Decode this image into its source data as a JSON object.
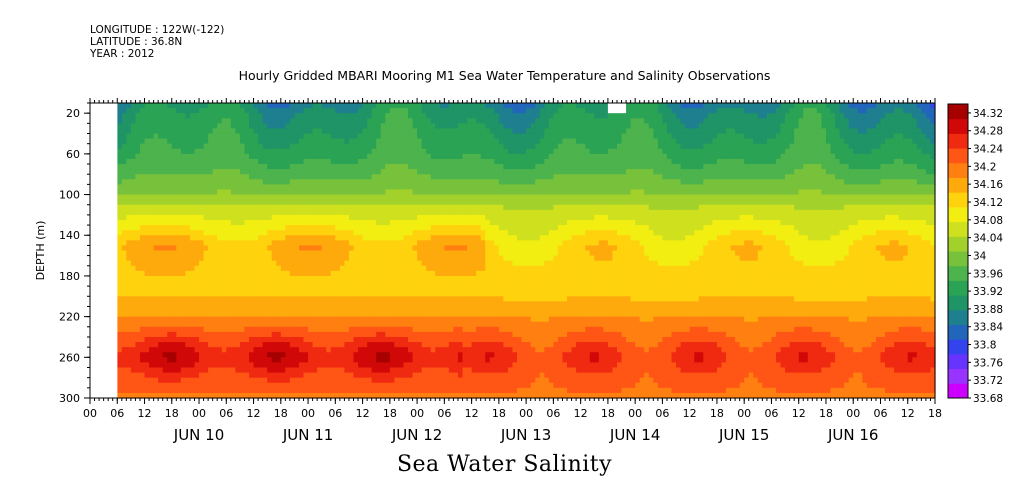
{
  "header": {
    "longitude": "LONGITUDE : 122W(-122)",
    "latitude": "LATITUDE : 36.8N",
    "year": "YEAR : 2012"
  },
  "title": "Hourly Gridded MBARI Mooring M1 Sea Water Temperature and Salinity Observations",
  "bottom_title": "Sea Water Salinity",
  "chart_data": {
    "type": "heatmap",
    "title": "Hourly Gridded MBARI Mooring M1 Sea Water Temperature and Salinity Observations",
    "variable": "Sea Water Salinity",
    "xlabel": "",
    "ylabel": "DEPTH (m)",
    "ylim": [
      300,
      10
    ],
    "y_ticks": [
      20,
      60,
      100,
      140,
      180,
      220,
      260,
      300
    ],
    "x_hour_ticks": [
      "00",
      "06",
      "12",
      "18",
      "00",
      "06",
      "12",
      "18",
      "00",
      "06",
      "12",
      "18",
      "00",
      "06",
      "12",
      "18",
      "00",
      "06",
      "12",
      "18",
      "00",
      "06",
      "12",
      "18",
      "00",
      "06",
      "12",
      "18",
      "00",
      "06",
      "12",
      "18"
    ],
    "x_day_labels": [
      "JUN 10",
      "JUN 11",
      "JUN 12",
      "JUN 13",
      "JUN 14",
      "JUN 15",
      "JUN 16"
    ],
    "x_range_hours_from_jun10_00": [
      -12,
      174
    ],
    "data_start_hours": -6,
    "colorbar": {
      "levels": [
        "34.32",
        "34.28",
        "34.24",
        "34.2",
        "34.16",
        "34.12",
        "34.08",
        "34.04",
        "34",
        "33.96",
        "33.92",
        "33.88",
        "33.84",
        "33.8",
        "33.76",
        "33.72",
        "33.68"
      ],
      "min": 33.68,
      "max": 34.34,
      "colors": [
        "#cc00ff",
        "#9933ff",
        "#6633ff",
        "#3344ee",
        "#2266bb",
        "#1e7f8f",
        "#1f9466",
        "#2aa355",
        "#4db34d",
        "#77c23a",
        "#a3d12c",
        "#cee01e",
        "#f2ee11",
        "#ffd20e",
        "#ffaa0c",
        "#ff8010",
        "#ff5515",
        "#f02a10",
        "#d10808",
        "#a60000"
      ]
    },
    "depth_profile": [
      {
        "depth": 10,
        "salinity": 33.88
      },
      {
        "depth": 20,
        "salinity": 33.9
      },
      {
        "depth": 40,
        "salinity": 33.92
      },
      {
        "depth": 60,
        "salinity": 33.94
      },
      {
        "depth": 80,
        "salinity": 33.97
      },
      {
        "depth": 100,
        "salinity": 34.01
      },
      {
        "depth": 120,
        "salinity": 34.07
      },
      {
        "depth": 140,
        "salinity": 34.12
      },
      {
        "depth": 150,
        "salinity": 34.15
      },
      {
        "depth": 170,
        "salinity": 34.14
      },
      {
        "depth": 190,
        "salinity": 34.13
      },
      {
        "depth": 210,
        "salinity": 34.15
      },
      {
        "depth": 230,
        "salinity": 34.2
      },
      {
        "depth": 250,
        "salinity": 34.25
      },
      {
        "depth": 260,
        "salinity": 34.27
      },
      {
        "depth": 280,
        "salinity": 34.23
      },
      {
        "depth": 300,
        "salinity": 34.2
      }
    ],
    "missing_data": [
      {
        "hours_from": -12,
        "hours_to": -6,
        "depth_from": 10,
        "depth_to": 300
      },
      {
        "hours_from": 102,
        "hours_to": 106,
        "depth_from": 10,
        "depth_to": 20
      }
    ],
    "grid": false,
    "colorbar_position": "right"
  }
}
